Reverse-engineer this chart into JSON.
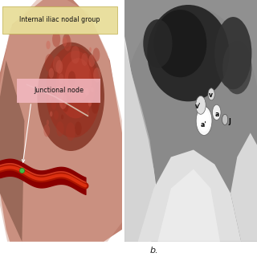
{
  "title_left": "Internal iliac nodal group",
  "label_left": "Junctional node",
  "label_bottom": "b.",
  "bg_color": "#ffffff",
  "title_box_color": "#e8de9a",
  "label_box_color": "#f2b8c0",
  "figure_width": 3.2,
  "figure_height": 3.2,
  "dpi": 100,
  "left_bg": "#000000",
  "tissue_main": "#c49080",
  "tissue_dark": "#9a6055",
  "tissue_light": "#d4a898",
  "mass_dark": "#8b3525",
  "mass_mid": "#b04535",
  "vessel_dark": "#aa1500",
  "vessel_bright": "#dd3010",
  "green_dot": "#44bb44",
  "white_line": "#e8e4cc",
  "ct_bg_gray": "#909090",
  "ct_dark": "#1a1a1a",
  "ct_bone": "#f0f0f0",
  "ct_bone2": "#d8d8d8",
  "ct_vessel_bright": "#f8f8f8",
  "ct_soft": "#686868",
  "ct_dark_mass": "#2a2a2a"
}
